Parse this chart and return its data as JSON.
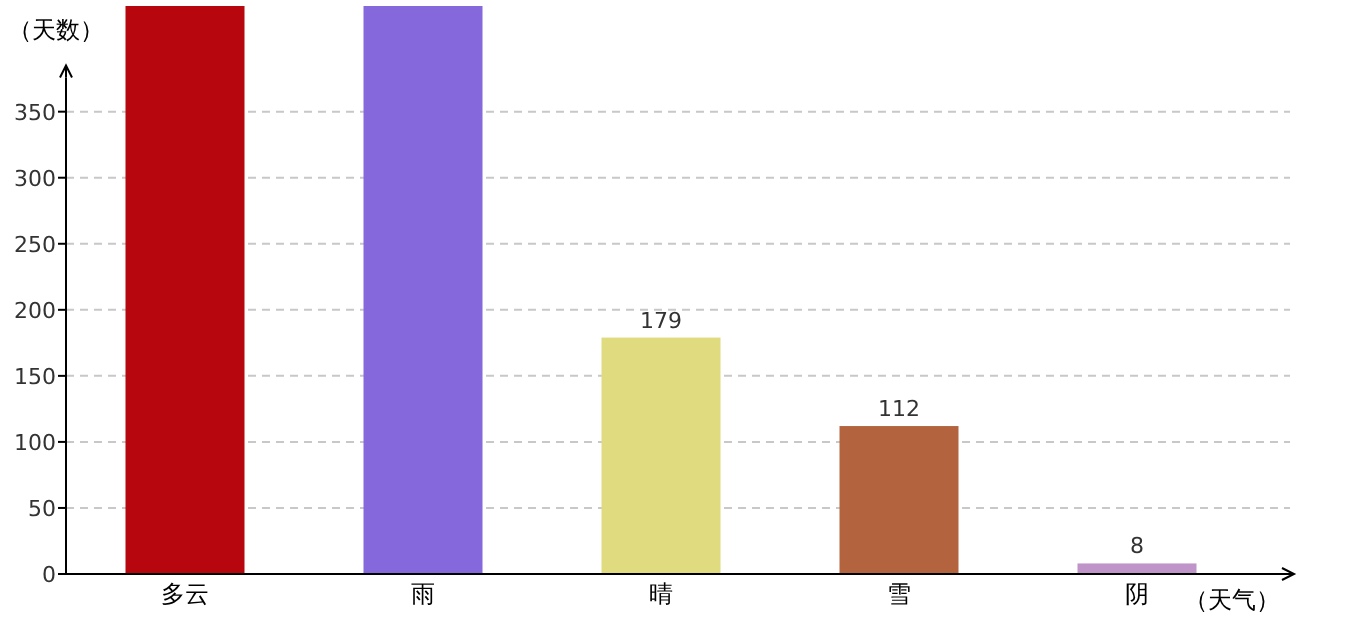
{
  "chart_data": {
    "type": "bar",
    "xlabel": "（天气）",
    "ylabel": "（天数）",
    "categories": [
      "多云",
      "雨",
      "晴",
      "雪",
      "阴"
    ],
    "values": [
      430,
      430,
      179,
      112,
      8
    ],
    "colors": [
      "#b8060e",
      "#8468dc",
      "#dfdb7e",
      "#b3643e",
      "#bf94c8"
    ],
    "value_labels": [
      null,
      null,
      "179",
      "112",
      "8"
    ],
    "ylim": [
      0,
      430
    ],
    "yticks": [
      0,
      50,
      100,
      150,
      200,
      250,
      300,
      350
    ],
    "grid": "y"
  }
}
